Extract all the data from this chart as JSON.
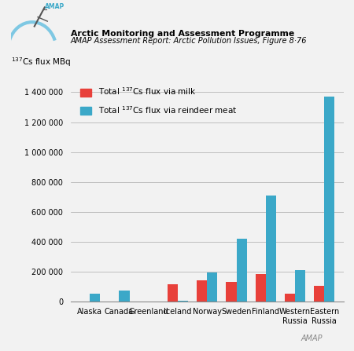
{
  "categories": [
    "Alaska",
    "Canada",
    "Greenland",
    "Iceland",
    "Norway",
    "Sweden",
    "Finland",
    "Western\nRussia",
    "Eastern\nRussia"
  ],
  "milk_values": [
    2000,
    2000,
    2000,
    120000,
    145000,
    135000,
    185000,
    55000,
    105000
  ],
  "reindeer_values": [
    55000,
    75000,
    3000,
    5000,
    195000,
    420000,
    710000,
    210000,
    1370000
  ],
  "milk_color": "#e8403a",
  "reindeer_color": "#3ba8c8",
  "title1": "Arctic Monitoring and Assessment Programme",
  "title2": "AMAP Assessment Report: Arctic Pollution Issues, Figure 8·76",
  "ylabel": "$^{137}$Cs flux MBq",
  "legend_milk": "Total $^{137}$Cs flux via milk",
  "legend_reindeer": "Total $^{137}$Cs flux via reindeer meat",
  "ylim": [
    0,
    1500000
  ],
  "yticks": [
    0,
    200000,
    400000,
    600000,
    800000,
    1000000,
    1200000,
    1400000
  ],
  "ytick_labels": [
    "0",
    "200 000",
    "400 000",
    "600 000",
    "800 000",
    "1 000 000",
    "1 200 000",
    "1 400 000"
  ],
  "bg_color": "#f2f2f2",
  "watermark": "AMAP",
  "bar_width": 0.35,
  "logo_arc_color": "#7ec8e3",
  "logo_text_color": "#3ba8c8"
}
